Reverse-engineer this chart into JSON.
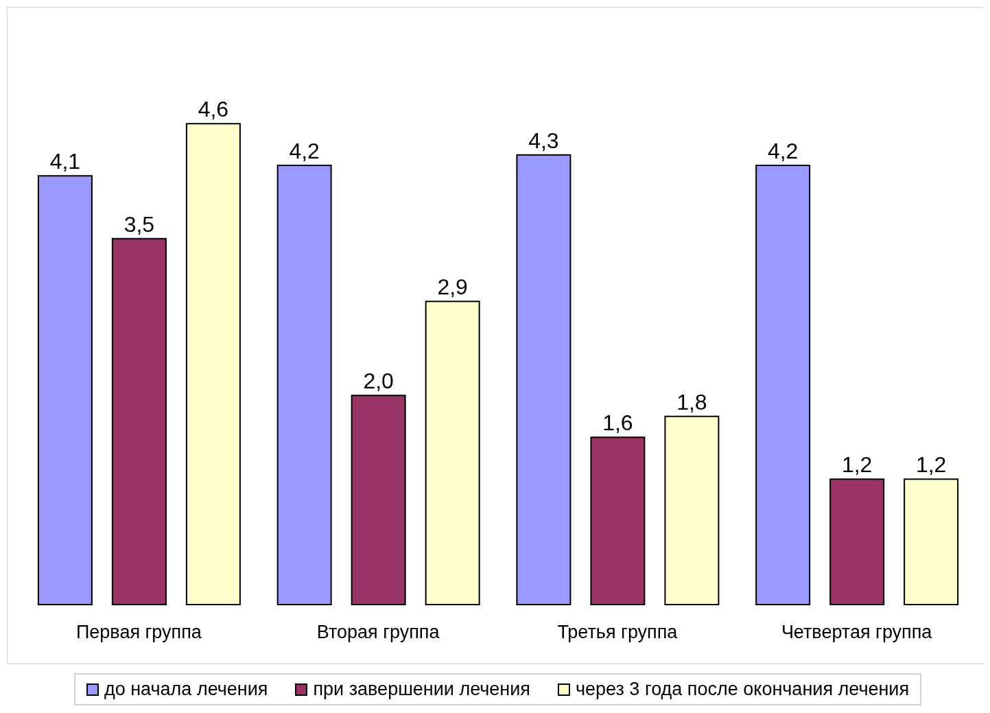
{
  "chart_data": {
    "type": "bar",
    "categories": [
      "Первая группа",
      "Вторая группа",
      "Третья группа",
      "Четвертая группа"
    ],
    "series": [
      {
        "name": "до начала лечения",
        "color": "#9999ff",
        "values": [
          4.1,
          4.2,
          4.3,
          4.2
        ],
        "value_labels": [
          "4,1",
          "4,2",
          "4,3",
          "4,2"
        ]
      },
      {
        "name": "при завершении лечения",
        "color": "#993366",
        "values": [
          3.5,
          2.0,
          1.6,
          1.2
        ],
        "value_labels": [
          "3,5",
          "2,0",
          "1,6",
          "1,2"
        ]
      },
      {
        "name": "через 3 года после окончания лечения",
        "color": "#ffffcc",
        "values": [
          4.6,
          2.9,
          1.8,
          1.2
        ],
        "value_labels": [
          "4,6",
          "2,9",
          "1,8",
          "1,2"
        ]
      }
    ],
    "legend": "bottom",
    "grid": false
  }
}
